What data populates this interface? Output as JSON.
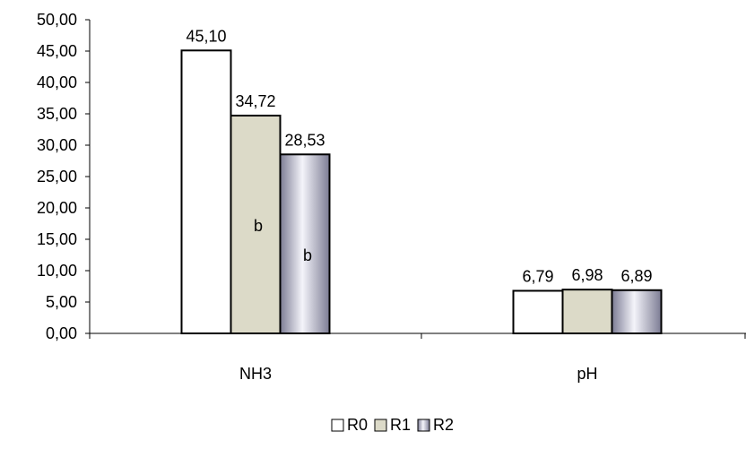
{
  "chart_data": {
    "type": "bar",
    "categories": [
      "NH3",
      "pH"
    ],
    "series": [
      {
        "name": "R0",
        "values": [
          45.1,
          6.79
        ],
        "labels": [
          "45,10",
          "6,79"
        ],
        "fill": "white"
      },
      {
        "name": "R1",
        "values": [
          34.72,
          6.98
        ],
        "labels": [
          "34,72",
          "6,98"
        ],
        "fill": "khaki"
      },
      {
        "name": "R2",
        "values": [
          28.53,
          6.89
        ],
        "labels": [
          "28,53",
          "6,89"
        ],
        "fill": "cylinder"
      }
    ],
    "annotations": [
      {
        "series": 1,
        "category": 0,
        "text": "b"
      },
      {
        "series": 2,
        "category": 0,
        "text": "b"
      }
    ],
    "ylim": [
      0,
      50
    ],
    "yticks": [
      0,
      5,
      10,
      15,
      20,
      25,
      30,
      35,
      40,
      45,
      50
    ],
    "ytick_labels": [
      "0,00",
      "5,00",
      "10,00",
      "15,00",
      "20,00",
      "25,00",
      "30,00",
      "35,00",
      "40,00",
      "45,00",
      "50,00"
    ],
    "title": "",
    "xlabel": "",
    "ylabel": "",
    "grid": false,
    "legend_position": "bottom",
    "colors": {
      "outline": "#000000",
      "r1_fill": "#dcdac8",
      "r2_light": "#f4f4fa",
      "r2_dark": "#7c7c94"
    }
  }
}
